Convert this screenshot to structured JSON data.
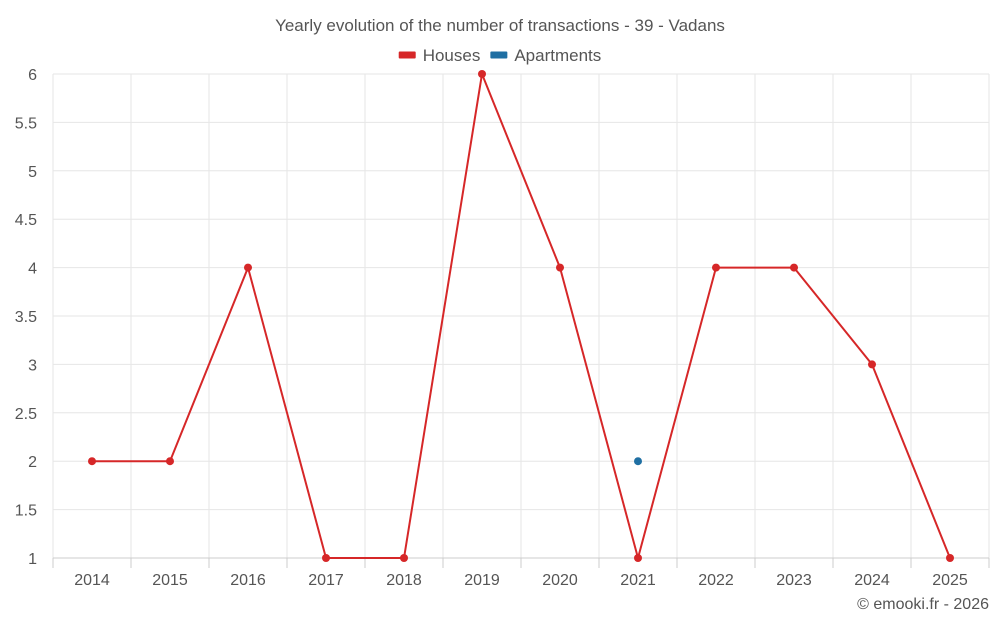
{
  "chart_data": {
    "type": "line",
    "title": "Yearly evolution of the number of transactions - 39 - Vadans",
    "categories": [
      "2014",
      "2015",
      "2016",
      "2017",
      "2018",
      "2019",
      "2020",
      "2021",
      "2022",
      "2023",
      "2024",
      "2025"
    ],
    "series": [
      {
        "name": "Houses",
        "color": "#d62728",
        "values": [
          2,
          2,
          4,
          1,
          1,
          6,
          4,
          1,
          4,
          4,
          3,
          1
        ]
      },
      {
        "name": "Apartments",
        "color": "#1f6fa3",
        "values": [
          null,
          null,
          null,
          null,
          null,
          null,
          null,
          2,
          null,
          null,
          null,
          null
        ]
      }
    ],
    "y_ticks": [
      "1",
      "1.5",
      "2",
      "2.5",
      "3",
      "3.5",
      "4",
      "4.5",
      "5",
      "5.5",
      "6"
    ],
    "ylim": [
      1,
      6
    ],
    "xlabel": "",
    "ylabel": "",
    "grid": true,
    "legend_position": "top-center"
  },
  "credit": "© emooki.fr - 2026"
}
